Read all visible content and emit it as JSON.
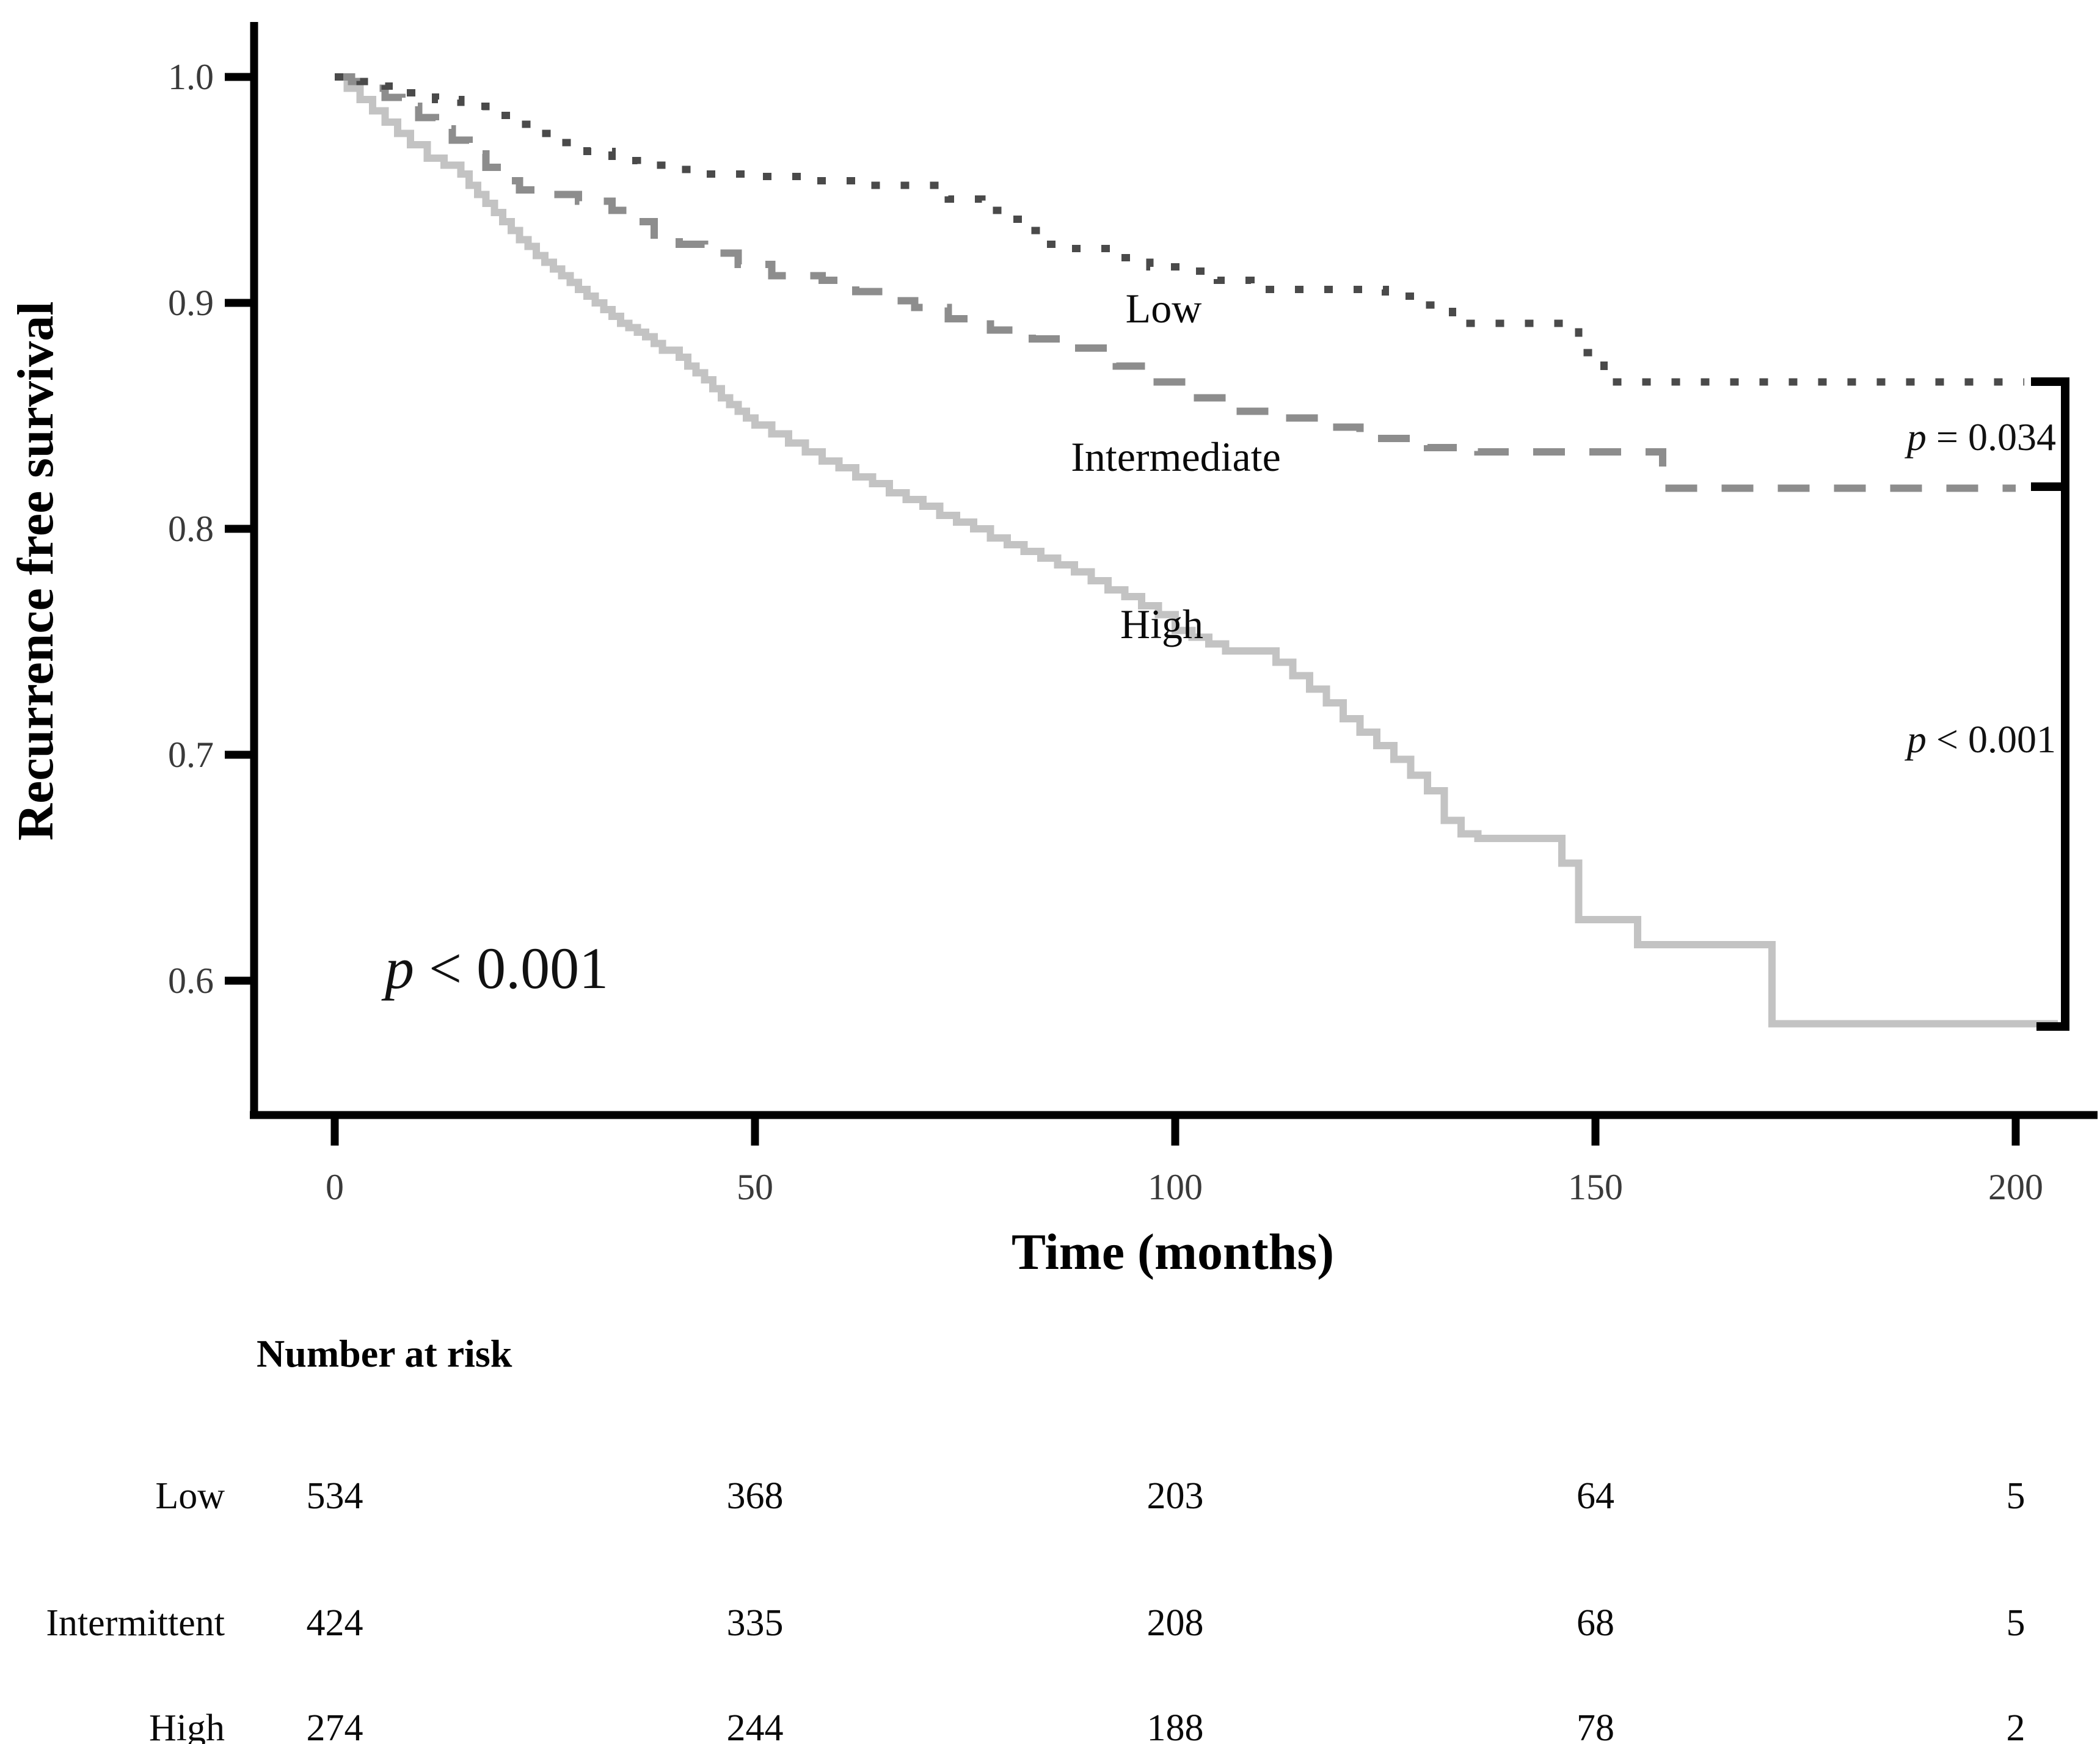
{
  "figure": {
    "y_axis": {
      "title": "Recurrence free survival",
      "tick_labels": [
        "1.0",
        "0.9",
        "0.8",
        "0.7",
        "0.6"
      ],
      "tick_values": [
        1.0,
        0.9,
        0.8,
        0.7,
        0.6
      ]
    },
    "x_axis": {
      "title": "Time (months)",
      "tick_labels": [
        "0",
        "50",
        "100",
        "150",
        "200"
      ],
      "tick_values": [
        0,
        50,
        100,
        150,
        200
      ]
    },
    "curve_labels": {
      "low": "Low",
      "intermediate": "Intermediate",
      "high": "High"
    },
    "annotations": {
      "p_left": {
        "var": "p",
        "rest": " < 0.001"
      },
      "p_right_top": {
        "var": "p",
        "rest": " = 0.034"
      },
      "p_right_bottom": {
        "var": "p",
        "rest": " < 0.001"
      }
    }
  },
  "chart_data": {
    "type": "line",
    "subtype": "kaplan-meier-step",
    "title": "",
    "xlabel": "Time (months)",
    "ylabel": "Recurrence free survival",
    "xlim": [
      0,
      207
    ],
    "ylim": [
      0.54,
      1.02
    ],
    "grid": false,
    "legend_position": "inline-labels",
    "comparisons": [
      {
        "groups": [
          "Low",
          "Intermediate"
        ],
        "p_value": "p = 0.034"
      },
      {
        "groups": [
          "Intermediate",
          "High"
        ],
        "p_value": "p < 0.001"
      },
      {
        "groups": [
          "Low",
          "Intermediate",
          "High"
        ],
        "p_value": "p < 0.001",
        "location": "plot lower-left"
      }
    ],
    "series": [
      {
        "name": "High",
        "style": "solid",
        "color": "#c3c3c3",
        "points": [
          [
            0,
            1.0
          ],
          [
            1.5,
            0.995
          ],
          [
            3,
            0.99
          ],
          [
            4.5,
            0.985
          ],
          [
            6,
            0.98
          ],
          [
            7.5,
            0.975
          ],
          [
            9,
            0.97
          ],
          [
            11,
            0.964
          ],
          [
            13,
            0.961
          ],
          [
            15,
            0.957
          ],
          [
            16,
            0.952
          ],
          [
            17,
            0.948
          ],
          [
            18,
            0.944
          ],
          [
            19,
            0.94
          ],
          [
            20,
            0.936
          ],
          [
            21,
            0.932
          ],
          [
            22,
            0.928
          ],
          [
            23,
            0.925
          ],
          [
            24,
            0.921
          ],
          [
            25,
            0.918
          ],
          [
            26,
            0.915
          ],
          [
            27,
            0.912
          ],
          [
            28,
            0.909
          ],
          [
            29,
            0.906
          ],
          [
            30,
            0.903
          ],
          [
            31,
            0.9
          ],
          [
            32,
            0.897
          ],
          [
            33,
            0.894
          ],
          [
            34,
            0.891
          ],
          [
            35,
            0.889
          ],
          [
            36,
            0.887
          ],
          [
            37,
            0.885
          ],
          [
            38,
            0.882
          ],
          [
            39,
            0.879
          ],
          [
            41,
            0.876
          ],
          [
            42,
            0.872
          ],
          [
            43,
            0.869
          ],
          [
            44,
            0.866
          ],
          [
            45,
            0.862
          ],
          [
            46,
            0.858
          ],
          [
            47,
            0.855
          ],
          [
            48,
            0.852
          ],
          [
            49,
            0.849
          ],
          [
            50,
            0.846
          ],
          [
            52,
            0.842
          ],
          [
            54,
            0.838
          ],
          [
            56,
            0.834
          ],
          [
            58,
            0.83
          ],
          [
            60,
            0.827
          ],
          [
            62,
            0.823
          ],
          [
            64,
            0.82
          ],
          [
            66,
            0.816
          ],
          [
            68,
            0.813
          ],
          [
            70,
            0.81
          ],
          [
            72,
            0.806
          ],
          [
            74,
            0.803
          ],
          [
            76,
            0.8
          ],
          [
            78,
            0.796
          ],
          [
            80,
            0.793
          ],
          [
            82,
            0.79
          ],
          [
            84,
            0.787
          ],
          [
            86,
            0.784
          ],
          [
            88,
            0.781
          ],
          [
            90,
            0.777
          ],
          [
            92,
            0.773
          ],
          [
            94,
            0.77
          ],
          [
            96,
            0.766
          ],
          [
            98,
            0.762
          ],
          [
            100,
            0.755
          ],
          [
            102,
            0.752
          ],
          [
            104,
            0.749
          ],
          [
            106,
            0.746
          ],
          [
            112,
            0.741
          ],
          [
            114,
            0.735
          ],
          [
            116,
            0.729
          ],
          [
            118,
            0.723
          ],
          [
            120,
            0.716
          ],
          [
            122,
            0.71
          ],
          [
            124,
            0.704
          ],
          [
            126,
            0.698
          ],
          [
            128,
            0.691
          ],
          [
            130,
            0.684
          ],
          [
            132,
            0.671
          ],
          [
            134,
            0.665
          ],
          [
            136,
            0.663
          ],
          [
            146,
            0.652
          ],
          [
            148,
            0.627
          ],
          [
            155,
            0.616
          ],
          [
            171,
            0.581
          ],
          [
            205,
            0.581
          ]
        ]
      },
      {
        "name": "Intermediate",
        "style": "dashed",
        "color": "#8d8d8d",
        "points": [
          [
            0,
            1.0
          ],
          [
            2,
            0.998
          ],
          [
            4,
            0.995
          ],
          [
            6,
            0.991
          ],
          [
            8,
            0.987
          ],
          [
            10,
            0.982
          ],
          [
            12,
            0.977
          ],
          [
            14,
            0.972
          ],
          [
            16,
            0.966
          ],
          [
            18,
            0.96
          ],
          [
            20,
            0.954
          ],
          [
            22,
            0.95
          ],
          [
            26,
            0.948
          ],
          [
            29,
            0.945
          ],
          [
            33,
            0.941
          ],
          [
            36,
            0.936
          ],
          [
            38,
            0.93
          ],
          [
            41,
            0.926
          ],
          [
            44,
            0.922
          ],
          [
            48,
            0.917
          ],
          [
            52,
            0.912
          ],
          [
            58,
            0.91
          ],
          [
            62,
            0.905
          ],
          [
            66,
            0.901
          ],
          [
            69,
            0.898
          ],
          [
            73,
            0.893
          ],
          [
            78,
            0.888
          ],
          [
            83,
            0.884
          ],
          [
            88,
            0.88
          ],
          [
            93,
            0.872
          ],
          [
            97,
            0.865
          ],
          [
            102,
            0.858
          ],
          [
            107,
            0.852
          ],
          [
            112,
            0.849
          ],
          [
            117,
            0.845
          ],
          [
            122,
            0.84
          ],
          [
            130,
            0.836
          ],
          [
            136,
            0.834
          ],
          [
            158,
            0.818
          ],
          [
            200,
            0.818
          ]
        ]
      },
      {
        "name": "Low",
        "style": "dotted",
        "color": "#4a4a4a",
        "points": [
          [
            0,
            1.0
          ],
          [
            3,
            0.998
          ],
          [
            6,
            0.996
          ],
          [
            9,
            0.993
          ],
          [
            12,
            0.99
          ],
          [
            15,
            0.987
          ],
          [
            18,
            0.983
          ],
          [
            21,
            0.979
          ],
          [
            24,
            0.975
          ],
          [
            27,
            0.971
          ],
          [
            30,
            0.967
          ],
          [
            33,
            0.963
          ],
          [
            36,
            0.961
          ],
          [
            40,
            0.959
          ],
          [
            44,
            0.957
          ],
          [
            49,
            0.956
          ],
          [
            55,
            0.954
          ],
          [
            62,
            0.952
          ],
          [
            73,
            0.946
          ],
          [
            77,
            0.941
          ],
          [
            80,
            0.937
          ],
          [
            82,
            0.932
          ],
          [
            84,
            0.926
          ],
          [
            87,
            0.924
          ],
          [
            93,
            0.92
          ],
          [
            97,
            0.916
          ],
          [
            102,
            0.914
          ],
          [
            105,
            0.91
          ],
          [
            109,
            0.906
          ],
          [
            125,
            0.903
          ],
          [
            129,
            0.899
          ],
          [
            133,
            0.891
          ],
          [
            148,
            0.878
          ],
          [
            151,
            0.865
          ],
          [
            201,
            0.865
          ]
        ]
      }
    ],
    "risk_table": {
      "header": "Number at risk",
      "time_points": [
        0,
        50,
        100,
        150,
        200
      ],
      "rows": [
        {
          "label": "Low",
          "values": [
            "534",
            "368",
            "203",
            "64",
            "5"
          ]
        },
        {
          "label": "Intermittent",
          "values": [
            "424",
            "335",
            "208",
            "68",
            "5"
          ]
        },
        {
          "label": "High",
          "values": [
            "274",
            "244",
            "188",
            "78",
            "2"
          ]
        }
      ]
    }
  }
}
